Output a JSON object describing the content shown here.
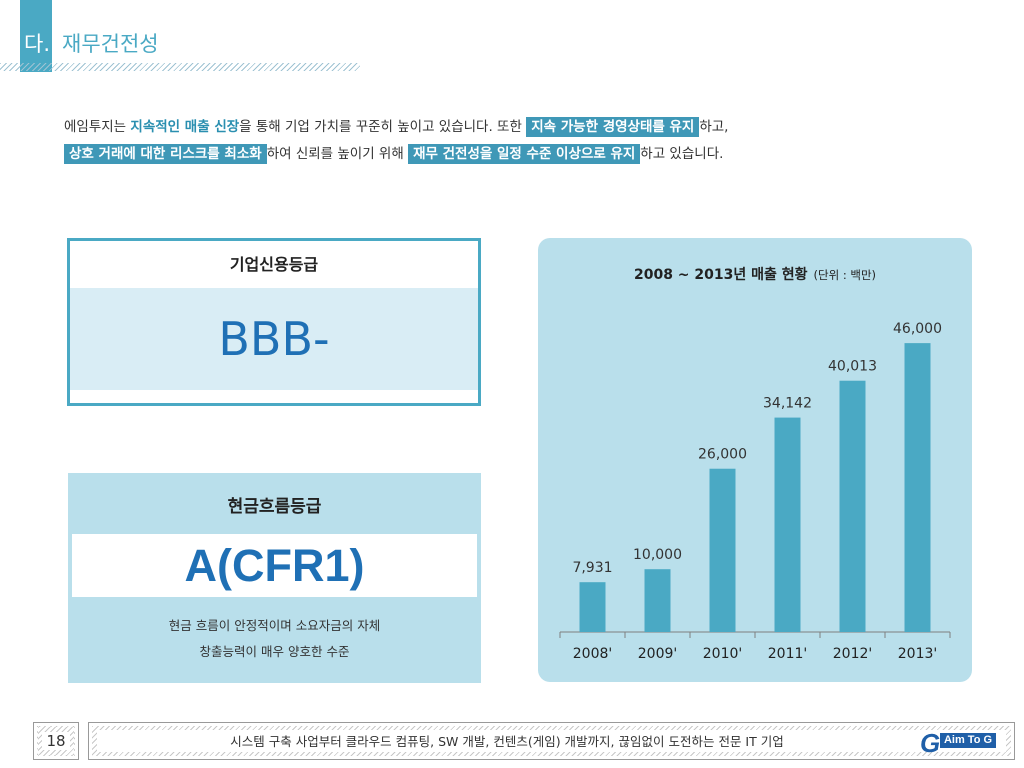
{
  "header": {
    "section_abbr": "다.",
    "section_title": "재무건전성"
  },
  "intro": {
    "p1": "에임투지는 ",
    "hl1": "지속적인 매출 신장",
    "p2": "을 통해 기업 가치를 꾸준히 높이고 있습니다. 또한 ",
    "hl2": "지속 가능한 경영상태를 유지",
    "p3": "하고, ",
    "hl3": "상호 거래에 대한 리스크를 최소화",
    "p4": "하여 신뢰를 높이기 위해 ",
    "hl4": "재무 건전성을 일정 수준 이상으로 유지",
    "p5": "하고 있습니다."
  },
  "credit_rating": {
    "title": "기업신용등급",
    "value": "BBB-"
  },
  "cashflow_rating": {
    "title": "현금흐름등급",
    "value": "A(CFR1)",
    "desc_line1": "현금 흐름이 안정적이며 소요자금의 자체",
    "desc_line2": "창출능력이 매우 양호한 수준"
  },
  "chart_data": {
    "type": "bar",
    "title": "2008 ~ 2013년 매출 현황",
    "unit_note": "(단위 : 백만)",
    "categories": [
      "2008'",
      "2009'",
      "2010'",
      "2011'",
      "2012'",
      "2013'"
    ],
    "values": [
      7931,
      10000,
      26000,
      34142,
      40013,
      46000
    ],
    "value_labels": [
      "7,931",
      "10,000",
      "26,000",
      "34,142",
      "40,013",
      "46,000"
    ],
    "bar_color": "#4aa9c4",
    "ylim": [
      0,
      50000
    ],
    "grid": false,
    "legend": "none"
  },
  "footer": {
    "page_number": "18",
    "tagline": "시스템 구축 사업부터 클라우드 컴퓨팅, SW 개발, 컨텐츠(게임) 개발까지, 끊임없이 도전하는 전문 IT 기업",
    "logo_mark": "G",
    "logo_text": "Aim To G"
  },
  "colors": {
    "accent": "#4aa9c4",
    "highlight_box": "#3f98b7",
    "rating_blue": "#1f70b5",
    "panel_bg": "#b9dfeb"
  }
}
